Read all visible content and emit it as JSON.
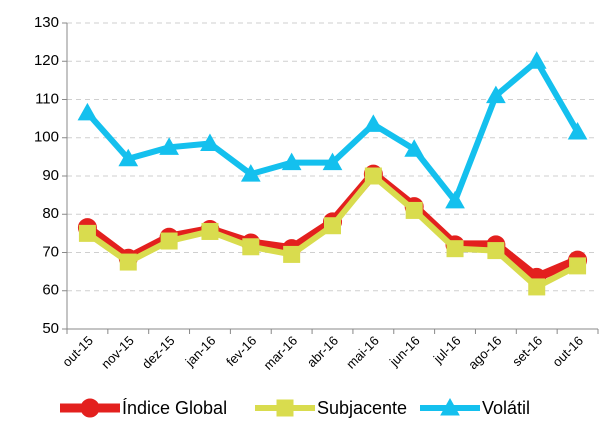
{
  "chart_data": {
    "type": "line",
    "categories": [
      "out-15",
      "nov-15",
      "dez-15",
      "jan-16",
      "fev-16",
      "mar-16",
      "abr-16",
      "mai-16",
      "jun-16",
      "jul-16",
      "ago-16",
      "set-16",
      "out-16"
    ],
    "series": [
      {
        "name": "Índice Global",
        "color": "#e3201e",
        "marker": "circle",
        "values": [
          76.5,
          68.5,
          74,
          76,
          72.5,
          71,
          78,
          90.5,
          82,
          72,
          72,
          63.5,
          68
        ]
      },
      {
        "name": "Subjacente",
        "color": "#d9dc4e",
        "marker": "square",
        "values": [
          75,
          67.5,
          73,
          75.5,
          71.5,
          69.5,
          77,
          90,
          81,
          71,
          70.5,
          61,
          66.5
        ]
      },
      {
        "name": "Volátil",
        "color": "#14c0ee",
        "marker": "triangle",
        "values": [
          106.5,
          94.5,
          97.5,
          98.5,
          90.5,
          93.5,
          93.5,
          103.5,
          97,
          83.5,
          111,
          120,
          101.5
        ]
      }
    ],
    "ylim": [
      50,
      130
    ],
    "yticks": [
      50,
      60,
      70,
      80,
      90,
      100,
      110,
      120,
      130
    ],
    "grid": true,
    "legend": "bottom"
  }
}
